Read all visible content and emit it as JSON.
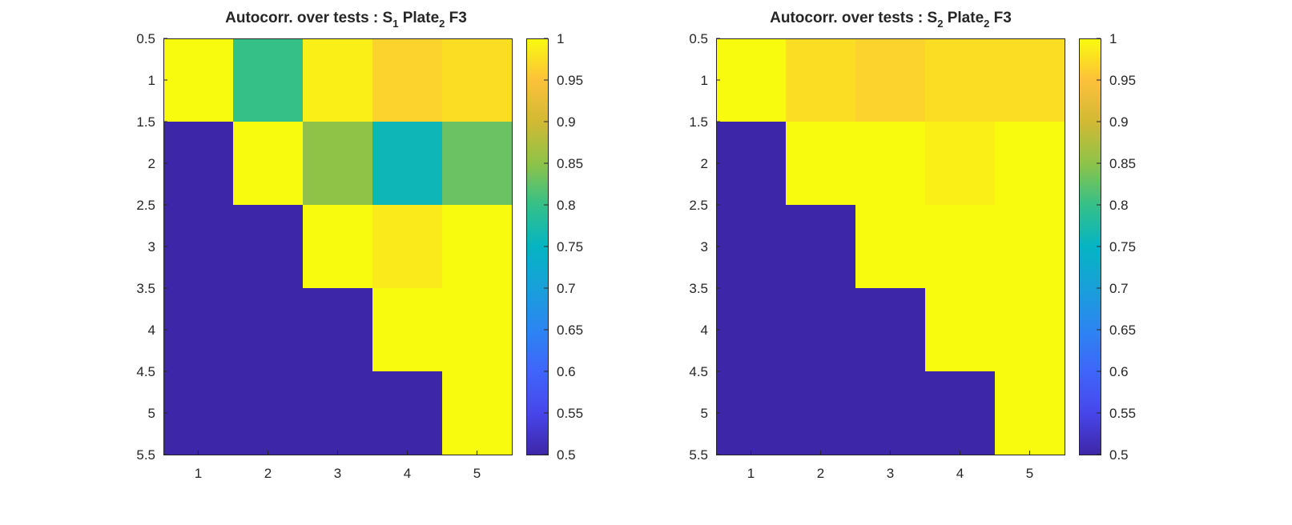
{
  "chart_data": [
    {
      "type": "heatmap",
      "title": {
        "prefix": "Autocorr. over tests : S",
        "sub1": "1",
        "mid": " Plate",
        "sub2": "2",
        "suffix": " F3"
      },
      "x_ticks": [
        "1",
        "2",
        "3",
        "4",
        "5"
      ],
      "y_ticks": [
        "0.5",
        "1",
        "1.5",
        "2",
        "2.5",
        "3",
        "3.5",
        "4",
        "4.5",
        "5",
        "5.5"
      ],
      "xlim": [
        0.5,
        5.5
      ],
      "ylim": [
        0.5,
        5.5
      ],
      "y_reversed": true,
      "clim": [
        0.5,
        1
      ],
      "colormap": "parula",
      "colorbar_ticks": [
        "0.5",
        "0.55",
        "0.6",
        "0.65",
        "0.7",
        "0.75",
        "0.8",
        "0.85",
        "0.9",
        "0.95",
        "1"
      ],
      "matrix": [
        [
          1.0,
          0.8,
          0.99,
          0.965,
          0.975
        ],
        [
          0.5,
          1.0,
          0.85,
          0.76,
          0.83
        ],
        [
          0.5,
          0.5,
          1.0,
          0.985,
          1.0
        ],
        [
          0.5,
          0.5,
          0.5,
          1.0,
          1.0
        ],
        [
          0.5,
          0.5,
          0.5,
          0.5,
          1.0
        ]
      ]
    },
    {
      "type": "heatmap",
      "title": {
        "prefix": "Autocorr. over tests : S",
        "sub1": "2",
        "mid": " Plate",
        "sub2": "2",
        "suffix": " F3"
      },
      "x_ticks": [
        "1",
        "2",
        "3",
        "4",
        "5"
      ],
      "y_ticks": [
        "0.5",
        "1",
        "1.5",
        "2",
        "2.5",
        "3",
        "3.5",
        "4",
        "4.5",
        "5",
        "5.5"
      ],
      "xlim": [
        0.5,
        5.5
      ],
      "ylim": [
        0.5,
        5.5
      ],
      "y_reversed": true,
      "clim": [
        0.5,
        1
      ],
      "colormap": "parula",
      "colorbar_ticks": [
        "0.5",
        "0.55",
        "0.6",
        "0.65",
        "0.7",
        "0.75",
        "0.8",
        "0.85",
        "0.9",
        "0.95",
        "1"
      ],
      "matrix": [
        [
          1.0,
          0.975,
          0.965,
          0.975,
          0.975
        ],
        [
          0.5,
          1.0,
          1.0,
          0.99,
          1.0
        ],
        [
          0.5,
          0.5,
          1.0,
          1.0,
          1.0
        ],
        [
          0.5,
          0.5,
          0.5,
          1.0,
          1.0
        ],
        [
          0.5,
          0.5,
          0.5,
          0.5,
          1.0
        ]
      ]
    }
  ]
}
